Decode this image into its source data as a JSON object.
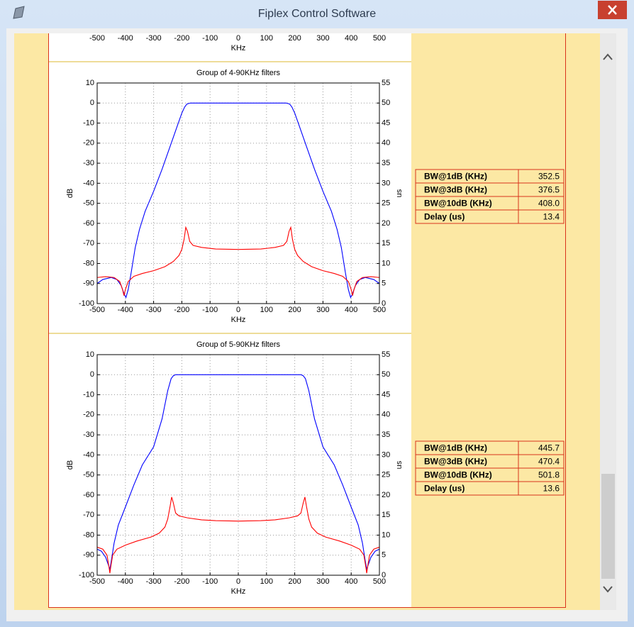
{
  "window": {
    "title": "Fiplex Control Software"
  },
  "top_chart": {
    "xlim": [
      -500,
      500
    ],
    "xticks": [
      -500,
      -400,
      -300,
      -200,
      -100,
      0,
      100,
      200,
      300,
      400,
      500
    ],
    "xlabel": "KHz"
  },
  "charts": [
    {
      "type": "line",
      "title": "Group of 4-90KHz filters",
      "xlabel": "KHz",
      "ylabel": "dB",
      "y2label": "us",
      "xlim": [
        -500,
        500
      ],
      "xticks": [
        -500,
        -400,
        -300,
        -200,
        -100,
        0,
        100,
        200,
        300,
        400,
        500
      ],
      "ylim": [
        -100,
        10
      ],
      "yticks": [
        -100,
        -90,
        -80,
        -70,
        -60,
        -50,
        -40,
        -30,
        -20,
        -10,
        0,
        10
      ],
      "y2lim": [
        0,
        55
      ],
      "y2ticks": [
        0,
        5,
        10,
        15,
        20,
        25,
        30,
        35,
        40,
        45,
        50,
        55
      ],
      "grid": true,
      "series": [
        {
          "color": "#0000ff",
          "x": [
            -500,
            -480,
            -450,
            -430,
            -415,
            -405,
            -398,
            -390,
            -380,
            -365,
            -350,
            -330,
            -300,
            -270,
            -240,
            -215,
            -200,
            -190,
            -182,
            -170,
            -150,
            0,
            150,
            170,
            182,
            190,
            200,
            215,
            240,
            270,
            300,
            330,
            350,
            365,
            380,
            390,
            398,
            405,
            415,
            430,
            450,
            480,
            500
          ],
          "values": [
            -90,
            -88,
            -87,
            -88,
            -91,
            -95,
            -97,
            -93,
            -85,
            -72,
            -63,
            -54,
            -44,
            -33,
            -21,
            -11,
            -5,
            -2,
            -0.5,
            0,
            0,
            0,
            0,
            0,
            -0.5,
            -2,
            -5,
            -11,
            -21,
            -33,
            -44,
            -54,
            -63,
            -72,
            -85,
            -93,
            -97,
            -95,
            -91,
            -88,
            -87,
            -88,
            -90
          ]
        },
        {
          "color": "#ff0000",
          "axis": "y2",
          "x": [
            -500,
            -470,
            -440,
            -420,
            -410,
            -405,
            -400,
            -390,
            -370,
            -340,
            -300,
            -260,
            -230,
            -210,
            -200,
            -192,
            -186,
            -180,
            -172,
            -160,
            -130,
            -80,
            0,
            80,
            130,
            160,
            172,
            180,
            186,
            192,
            200,
            210,
            230,
            260,
            300,
            340,
            370,
            390,
            400,
            405,
            410,
            420,
            440,
            470,
            500
          ],
          "values": [
            6.5,
            6.7,
            6.5,
            5.5,
            3.5,
            2,
            3.5,
            5.5,
            6.8,
            7.5,
            8.2,
            9.2,
            10.5,
            12,
            13.5,
            16,
            19,
            18,
            15.5,
            14.5,
            14,
            13.6,
            13.5,
            13.6,
            14,
            14.5,
            15.5,
            18,
            19,
            16,
            13.5,
            12,
            10.5,
            9.2,
            8.2,
            7.5,
            6.8,
            5.5,
            3.5,
            2,
            3.5,
            5.5,
            6.5,
            6.7,
            6.5
          ]
        }
      ],
      "table": {
        "rows": [
          [
            "BW@1dB (KHz)",
            "352.5"
          ],
          [
            "BW@3dB (KHz)",
            "376.5"
          ],
          [
            "BW@10dB (KHz)",
            "408.0"
          ],
          [
            "Delay (us)",
            "13.4"
          ]
        ]
      }
    },
    {
      "type": "line",
      "title": "Group of 5-90KHz filters",
      "xlabel": "KHz",
      "ylabel": "dB",
      "y2label": "us",
      "xlim": [
        -500,
        500
      ],
      "xticks": [
        -500,
        -400,
        -300,
        -200,
        -100,
        0,
        100,
        200,
        300,
        400,
        500
      ],
      "ylim": [
        -100,
        10
      ],
      "yticks": [
        -100,
        -90,
        -80,
        -70,
        -60,
        -50,
        -40,
        -30,
        -20,
        -10,
        0,
        10
      ],
      "y2lim": [
        0,
        55
      ],
      "y2ticks": [
        0,
        5,
        10,
        15,
        20,
        25,
        30,
        35,
        40,
        45,
        50,
        55
      ],
      "grid": true,
      "series": [
        {
          "color": "#0000ff",
          "x": [
            -500,
            -485,
            -470,
            -460,
            -455,
            -450,
            -440,
            -425,
            -400,
            -370,
            -340,
            -300,
            -270,
            -250,
            -238,
            -230,
            -222,
            -200,
            0,
            200,
            222,
            230,
            238,
            250,
            270,
            300,
            340,
            370,
            400,
            425,
            440,
            450,
            455,
            460,
            470,
            485,
            500
          ],
          "values": [
            -87,
            -88,
            -91,
            -95,
            -97,
            -93,
            -84,
            -75,
            -66,
            -55,
            -45,
            -36,
            -22,
            -8,
            -2,
            -0.5,
            0,
            0,
            0,
            0,
            0,
            -0.5,
            -2,
            -8,
            -22,
            -36,
            -45,
            -55,
            -66,
            -75,
            -84,
            -93,
            -97,
            -95,
            -91,
            -88,
            -87
          ]
        },
        {
          "color": "#ff0000",
          "axis": "y2",
          "x": [
            -500,
            -480,
            -465,
            -458,
            -455,
            -452,
            -445,
            -430,
            -400,
            -360,
            -310,
            -280,
            -260,
            -250,
            -242,
            -236,
            -230,
            -222,
            -210,
            -180,
            -130,
            -80,
            0,
            80,
            130,
            180,
            210,
            222,
            230,
            236,
            242,
            250,
            260,
            280,
            310,
            360,
            400,
            430,
            445,
            452,
            455,
            458,
            465,
            480,
            500
          ],
          "values": [
            7,
            6.5,
            5,
            2,
            0.5,
            2,
            5,
            6.5,
            7.5,
            8.5,
            9.5,
            10.5,
            12,
            14,
            17,
            19.5,
            18,
            15.5,
            14.8,
            14.3,
            13.8,
            13.6,
            13.5,
            13.6,
            13.8,
            14.3,
            14.8,
            15.5,
            18,
            19.5,
            17,
            14,
            12,
            10.5,
            9.5,
            8.5,
            7.5,
            6.5,
            5,
            2,
            0.5,
            2,
            5,
            6.5,
            7
          ]
        }
      ],
      "table": {
        "rows": [
          [
            "BW@1dB (KHz)",
            "445.7"
          ],
          [
            "BW@3dB (KHz)",
            "470.4"
          ],
          [
            "BW@10dB (KHz)",
            "501.8"
          ],
          [
            "Delay (us)",
            "13.6"
          ]
        ]
      }
    }
  ]
}
